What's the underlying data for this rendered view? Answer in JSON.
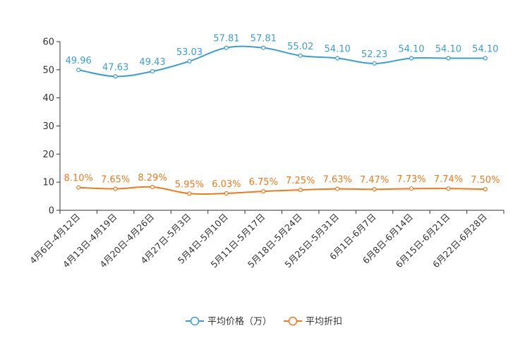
{
  "chart_data": {
    "type": "line",
    "categories": [
      "4月6日-4月12日",
      "4月13日-4月19日",
      "4月20日-4月26日",
      "4月27日-5月3日",
      "5月4日-5月10日",
      "5月11日-5月17日",
      "5月18日-5月24日",
      "5月25日-5月31日",
      "6月1日-6月7日",
      "6月8日-6月14日",
      "6月15日-6月21日",
      "6月22日-6月28日"
    ],
    "series": [
      {
        "name": "平均价格（万）",
        "color": "#3a9fd0",
        "values": [
          49.96,
          47.63,
          49.43,
          53.03,
          57.81,
          57.81,
          55.02,
          54.1,
          52.23,
          54.1,
          54.1,
          54.1
        ],
        "labels": [
          "49.96",
          "47.63",
          "49.43",
          "53.03",
          "57.81",
          "57.81",
          "55.02",
          "54.10",
          "52.23",
          "54.10",
          "54.10",
          "54.10"
        ]
      },
      {
        "name": "平均折扣",
        "color": "#f07a1a",
        "values": [
          8.1,
          7.65,
          8.29,
          5.95,
          6.03,
          6.75,
          7.25,
          7.63,
          7.47,
          7.73,
          7.74,
          7.5
        ],
        "labels": [
          "8.10%",
          "7.65%",
          "8.29%",
          "5.95%",
          "6.03%",
          "6.75%",
          "7.25%",
          "7.63%",
          "7.47%",
          "7.73%",
          "7.74%",
          "7.50%"
        ]
      }
    ],
    "ylim": [
      0,
      60
    ],
    "yticks": [
      0,
      10,
      20,
      30,
      40,
      50,
      60
    ],
    "title": "",
    "xlabel": "",
    "ylabel": "",
    "legend_position": "bottom-center"
  }
}
